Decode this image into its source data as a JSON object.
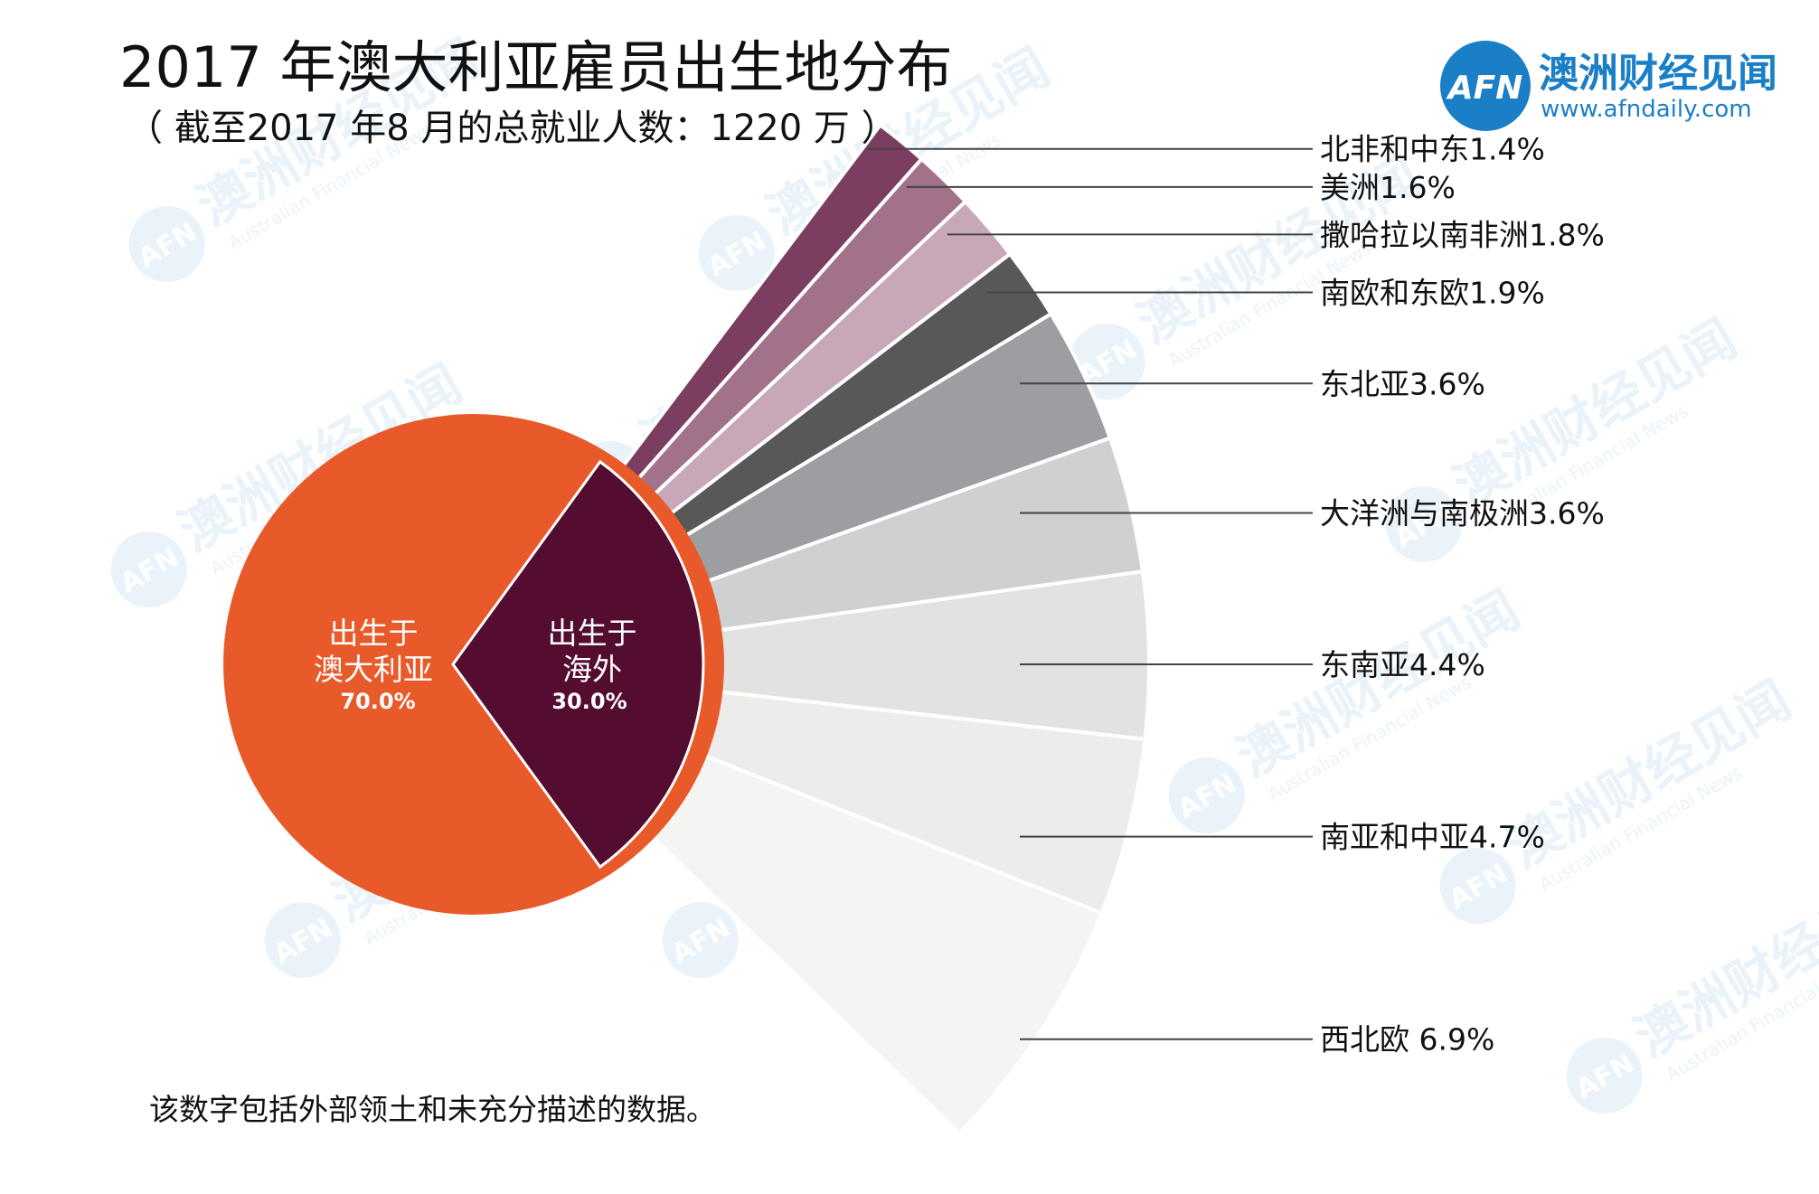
{
  "header": {
    "title": "2017 年澳大利亚雇员出生地分布",
    "subtitle": "（ 截至2017 年8 月的总就业人数：1220 万 ）"
  },
  "logo": {
    "badge_text": "AFN",
    "name_cn": "澳洲财经见闻",
    "url": "www.afndaily.com",
    "brand_color": "#1a7fc6"
  },
  "watermark": {
    "badge_text": "AFN",
    "cn": "澳洲财经见闻",
    "en": "Australian Financial News"
  },
  "footnote": "该数字包括外部领土和未充分描述的数据。",
  "chart_data": {
    "type": "pie",
    "title": "2017 年澳大利亚雇员出生地分布",
    "subtitle": "（ 截至2017 年8 月的总就业人数：1220 万 ）",
    "unit": "%",
    "main_pie": [
      {
        "label_line1": "出生于",
        "label_line2": "澳大利亚",
        "value": 70.0,
        "value_text": "70.0%",
        "color": "#e95a2a"
      },
      {
        "label_line1": "出生于",
        "label_line2": "海外",
        "value": 30.0,
        "value_text": "30.0%",
        "color": "#540d31"
      }
    ],
    "breakdown": [
      {
        "label": "北非和中东1.4%",
        "region": "北非和中东",
        "value": 1.4,
        "color": "#7b3d60"
      },
      {
        "label": "美洲1.6%",
        "region": "美洲",
        "value": 1.6,
        "color": "#a2728b"
      },
      {
        "label": "撒哈拉以南非洲1.8%",
        "region": "撒哈拉以南非洲",
        "value": 1.8,
        "color": "#c8a8b8"
      },
      {
        "label": "南欧和东欧1.9%",
        "region": "南欧和东欧",
        "value": 1.9,
        "color": "#585858"
      },
      {
        "label": "东北亚3.6%",
        "region": "东北亚",
        "value": 3.6,
        "color": "#9c9ea2"
      },
      {
        "label": "大洋洲与南极洲3.6%",
        "region": "大洋洲与南极洲",
        "value": 3.6,
        "color": "#ced0d2"
      },
      {
        "label": "东南亚4.4%",
        "region": "东南亚",
        "value": 4.4,
        "color": "#e2e3e0"
      },
      {
        "label": "南亚和中亚4.7%",
        "region": "南亚和中亚",
        "value": 4.7,
        "color": "#ececea"
      },
      {
        "label": "西北欧 6.9%",
        "region": "西北欧",
        "value": 6.9,
        "color": "#f4f4f3"
      }
    ]
  }
}
